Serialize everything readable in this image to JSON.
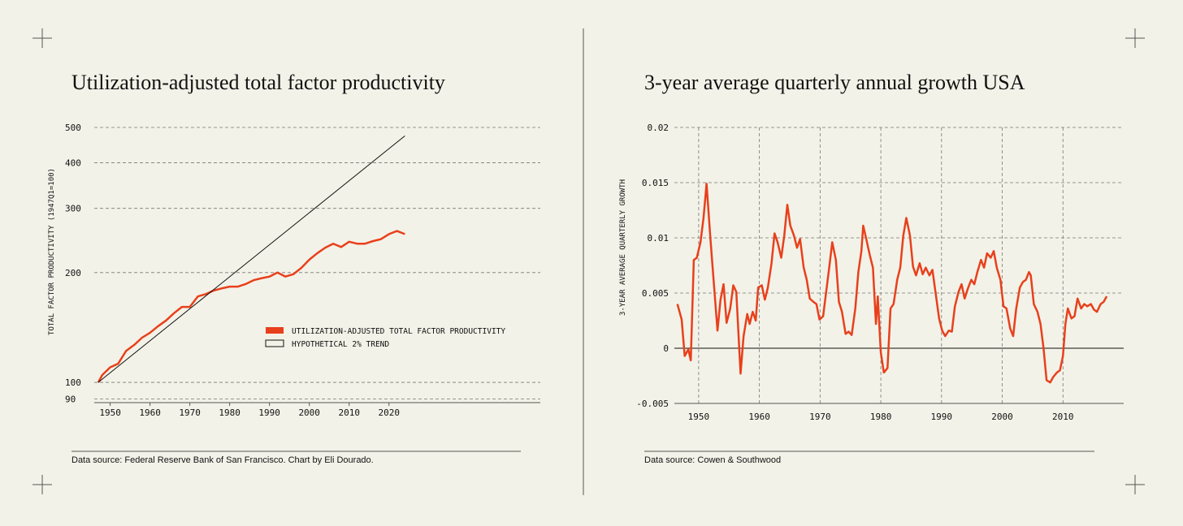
{
  "chart_data": [
    {
      "type": "line",
      "title": "Utilization-adjusted total factor productivity",
      "y_label": "TOTAL FACTOR PRODUCTIVITY (1947Q1=100)",
      "source": "Data source: Federal Reserve Bank of San Francisco. Chart by Eli Dourado.",
      "yscale": "log",
      "ylim": [
        88,
        500
      ],
      "yticks": [
        90,
        100,
        200,
        300,
        400,
        500
      ],
      "xlim": [
        1946,
        2058
      ],
      "xticks": [
        1950,
        1960,
        1970,
        1980,
        1990,
        2000,
        2010,
        2020
      ],
      "grid": true,
      "legend": "right",
      "series": [
        {
          "name": "UTILIZATION-ADJUSTED TOTAL FACTOR PRODUCTIVITY",
          "color": "#e8401c",
          "width": 2.5,
          "x": [
            1947,
            1948,
            1950,
            1952,
            1954,
            1956,
            1958,
            1960,
            1962,
            1964,
            1966,
            1968,
            1970,
            1972,
            1974,
            1976,
            1978,
            1980,
            1982,
            1984,
            1986,
            1988,
            1990,
            1992,
            1994,
            1996,
            1998,
            2000,
            2002,
            2004,
            2006,
            2008,
            2010,
            2012,
            2014,
            2016,
            2018,
            2020,
            2022,
            2024
          ],
          "values": [
            100,
            104.7,
            110,
            112.5,
            122,
            126.6,
            132.6,
            136.8,
            142.5,
            147.7,
            154.7,
            161,
            161,
            172,
            174.6,
            178.6,
            181,
            183,
            183,
            186,
            190.6,
            193,
            195,
            200,
            195,
            198,
            206,
            217,
            226,
            234,
            240,
            235,
            243,
            240,
            240,
            244,
            247,
            255,
            260,
            255
          ]
        },
        {
          "name": "HYPOTHETICAL 2% TREND",
          "color": "#111111",
          "width": 1,
          "x": [
            1947,
            2024
          ],
          "values": [
            100,
            474
          ]
        }
      ]
    },
    {
      "type": "line",
      "title": "3-year average quarterly annual growth USA",
      "y_label": "3-YEAR AVERAGE QUARTERLY GROWTH",
      "source": "Data source: Cowen & Southwood",
      "yscale": "linear",
      "ylim": [
        -0.005,
        0.02
      ],
      "yticks": [
        -0.005,
        0,
        0.005,
        0.01,
        0.015,
        0.02
      ],
      "xlim": [
        1946,
        2020
      ],
      "xticks": [
        1950,
        1960,
        1970,
        1980,
        1990,
        2000,
        2010
      ],
      "grid": true,
      "zero_line": true,
      "series": [
        {
          "color": "#e8401c",
          "width": 2.5,
          "x": [
            1946.5,
            1947.2,
            1947.7,
            1948.3,
            1948.7,
            1949.2,
            1949.7,
            1950.3,
            1950.8,
            1951.3,
            1951.9,
            1952.4,
            1953.1,
            1953.6,
            1954.1,
            1954.6,
            1955.2,
            1955.7,
            1956.2,
            1956.9,
            1957.4,
            1958.0,
            1958.4,
            1958.9,
            1959.4,
            1959.8,
            1960.4,
            1960.9,
            1961.4,
            1962.0,
            1962.5,
            1963.0,
            1963.6,
            1964.1,
            1964.6,
            1965.1,
            1965.7,
            1966.2,
            1966.7,
            1967.3,
            1967.8,
            1968.3,
            1968.9,
            1969.4,
            1969.9,
            1970.5,
            1971.0,
            1971.5,
            1972.0,
            1972.6,
            1973.1,
            1973.6,
            1974.2,
            1974.7,
            1975.2,
            1975.8,
            1976.3,
            1976.8,
            1977.1,
            1977.6,
            1978.2,
            1978.7,
            1979.2,
            1979.5,
            1980.0,
            1980.5,
            1981.1,
            1981.6,
            1982.1,
            1982.7,
            1983.2,
            1983.7,
            1984.2,
            1984.8,
            1985.3,
            1985.8,
            1986.4,
            1986.9,
            1987.4,
            1988.0,
            1988.5,
            1989.0,
            1989.6,
            1990.1,
            1990.6,
            1991.2,
            1991.7,
            1992.2,
            1992.8,
            1993.3,
            1993.8,
            1994.4,
            1994.9,
            1995.4,
            1995.9,
            1996.5,
            1997.0,
            1997.5,
            1998.1,
            1998.6,
            1999.1,
            1999.7,
            2000.2,
            2000.7,
            2001.3,
            2001.8,
            2002.3,
            2002.9,
            2003.4,
            2003.9,
            2004.4,
            2004.7,
            2005.2,
            2005.8,
            2006.3,
            2006.8,
            2007.3,
            2007.9,
            2008.4,
            2009.0,
            2009.5,
            2010.0,
            2010.4,
            2010.8,
            2011.4,
            2011.9,
            2012.4,
            2013.0,
            2013.5,
            2014.0,
            2014.6,
            2015.1,
            2015.6,
            2016.2,
            2016.7,
            2017.2
          ],
          "values": [
            0.004,
            0.0026,
            -0.0007,
            -0.0001,
            -0.0011,
            0.008,
            0.0082,
            0.0096,
            0.0118,
            0.0149,
            0.0102,
            0.0066,
            0.0016,
            0.0044,
            0.0058,
            0.0023,
            0.0036,
            0.0057,
            0.0051,
            -0.0023,
            0.0011,
            0.0031,
            0.0022,
            0.0033,
            0.0025,
            0.0055,
            0.0057,
            0.0044,
            0.0055,
            0.0077,
            0.0104,
            0.0096,
            0.0082,
            0.0102,
            0.013,
            0.0111,
            0.0102,
            0.0091,
            0.0099,
            0.0073,
            0.0062,
            0.0045,
            0.0042,
            0.004,
            0.0026,
            0.0029,
            0.0051,
            0.0073,
            0.0096,
            0.008,
            0.0042,
            0.0033,
            0.0013,
            0.0015,
            0.0012,
            0.0036,
            0.0069,
            0.0088,
            0.0111,
            0.0099,
            0.0084,
            0.0073,
            0.0022,
            0.0047,
            -0.0004,
            -0.0022,
            -0.0018,
            0.0036,
            0.004,
            0.0062,
            0.0073,
            0.0102,
            0.0118,
            0.0102,
            0.0074,
            0.0066,
            0.0077,
            0.0067,
            0.0073,
            0.0066,
            0.0071,
            0.0051,
            0.0027,
            0.0016,
            0.0011,
            0.0016,
            0.0015,
            0.0038,
            0.0051,
            0.0058,
            0.0045,
            0.0055,
            0.0062,
            0.0058,
            0.0069,
            0.008,
            0.0073,
            0.0086,
            0.0082,
            0.0088,
            0.0073,
            0.0062,
            0.0038,
            0.0036,
            0.0018,
            0.0011,
            0.0036,
            0.0055,
            0.006,
            0.0062,
            0.0069,
            0.0066,
            0.004,
            0.0033,
            0.0022,
            0,
            -0.0029,
            -0.0031,
            -0.0026,
            -0.0022,
            -0.002,
            -0.0007,
            0.0022,
            0.0036,
            0.0027,
            0.0029,
            0.0045,
            0.0036,
            0.004,
            0.0038,
            0.004,
            0.0035,
            0.0033,
            0.004,
            0.0042,
            0.0047
          ]
        }
      ]
    }
  ]
}
